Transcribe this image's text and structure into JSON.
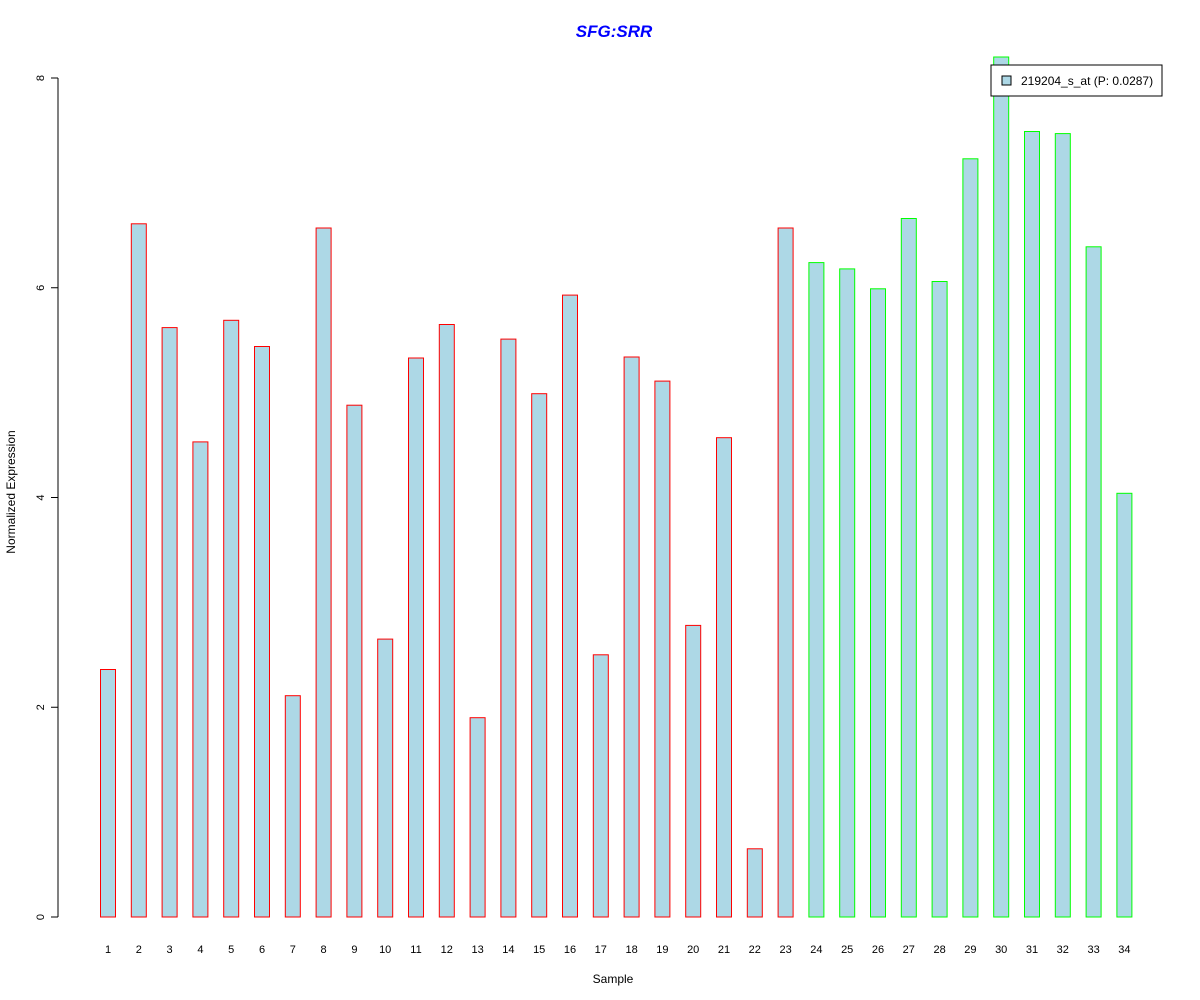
{
  "chart_data": {
    "type": "bar",
    "title": "SFG:SRR",
    "xlabel": "Sample",
    "ylabel": "Normalized Expression",
    "ylim": [
      0,
      8.2
    ],
    "yticks": [
      0,
      2,
      4,
      6,
      8
    ],
    "categories": [
      "1",
      "2",
      "3",
      "4",
      "5",
      "6",
      "7",
      "8",
      "9",
      "10",
      "11",
      "12",
      "13",
      "14",
      "15",
      "16",
      "17",
      "18",
      "19",
      "20",
      "21",
      "22",
      "23",
      "24",
      "25",
      "26",
      "27",
      "28",
      "29",
      "30",
      "31",
      "32",
      "33",
      "34"
    ],
    "series": [
      {
        "name": "219204_s_at (P: 0.0287)",
        "values": [
          2.36,
          6.61,
          5.62,
          4.53,
          5.69,
          5.44,
          2.11,
          6.57,
          4.88,
          2.65,
          5.33,
          5.65,
          1.9,
          5.51,
          4.99,
          5.93,
          2.5,
          5.34,
          5.11,
          2.78,
          4.57,
          0.65,
          6.57,
          6.24,
          6.18,
          5.99,
          6.66,
          6.06,
          7.23,
          8.2,
          7.49,
          7.47,
          6.39,
          4.04
        ]
      }
    ],
    "group_split_index": 23,
    "grid": false,
    "legend_position": "top-right",
    "colors": {
      "title": "#0000ff",
      "bar_fill": "#add8e6",
      "group1_border": "#ff0000",
      "group2_border": "#00ff00",
      "axis": "#000000"
    }
  }
}
